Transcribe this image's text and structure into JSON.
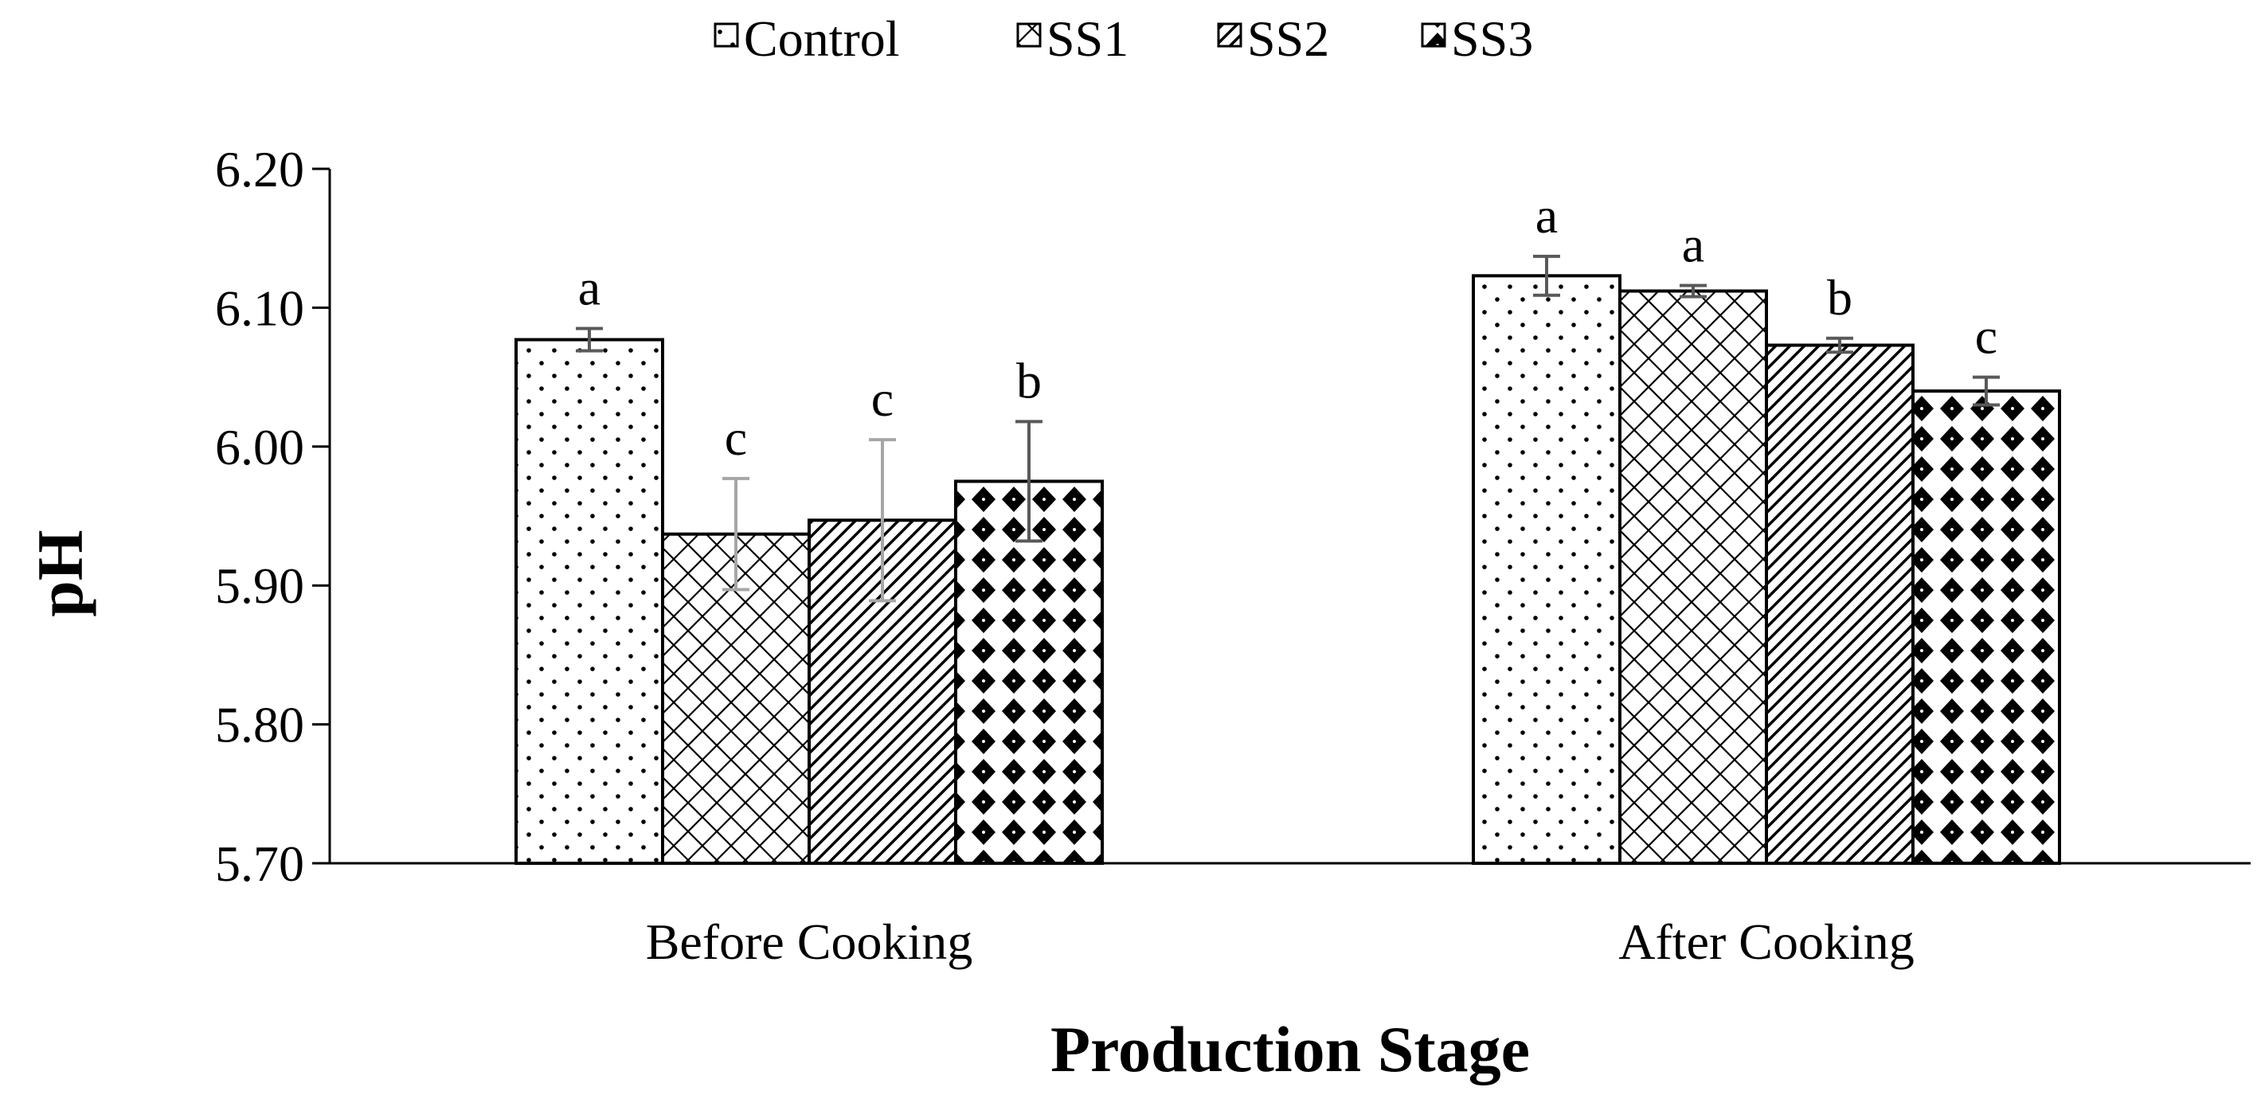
{
  "chart_data": {
    "type": "bar",
    "title": "",
    "xlabel": "Production Stage",
    "ylabel": "pH",
    "ylim": [
      5.7,
      6.2
    ],
    "yticks": [
      5.7,
      5.8,
      5.9,
      6.0,
      6.1,
      6.2
    ],
    "ytick_labels": [
      "5.70",
      "5.80",
      "5.90",
      "6.00",
      "6.10",
      "6.20"
    ],
    "grid": false,
    "legend_position": "top-center",
    "categories": [
      "Before Cooking",
      "After Cooking"
    ],
    "series": [
      {
        "name": "Control",
        "pattern": "dots",
        "values": [
          6.077,
          6.123
        ],
        "errors": [
          0.008,
          0.014
        ],
        "labels": [
          "a",
          "a"
        ]
      },
      {
        "name": "SS1",
        "pattern": "crosshatch",
        "values": [
          5.937,
          6.112
        ],
        "errors": [
          0.04,
          0.004
        ],
        "labels": [
          "c",
          "a"
        ]
      },
      {
        "name": "SS2",
        "pattern": "diagonal",
        "values": [
          5.947,
          6.073
        ],
        "errors": [
          0.058,
          0.005
        ],
        "labels": [
          "c",
          "b"
        ]
      },
      {
        "name": "SS3",
        "pattern": "diamonds",
        "values": [
          5.975,
          6.04
        ],
        "errors": [
          0.043,
          0.01
        ],
        "labels": [
          "b",
          "c"
        ]
      }
    ]
  },
  "colors": {
    "bar_fill": "#ffffff",
    "bar_stroke": "#000000",
    "pattern": "#000000",
    "error_bar_dark": "#595959",
    "error_bar_light": "#a6a6a6",
    "axis": "#000000"
  }
}
